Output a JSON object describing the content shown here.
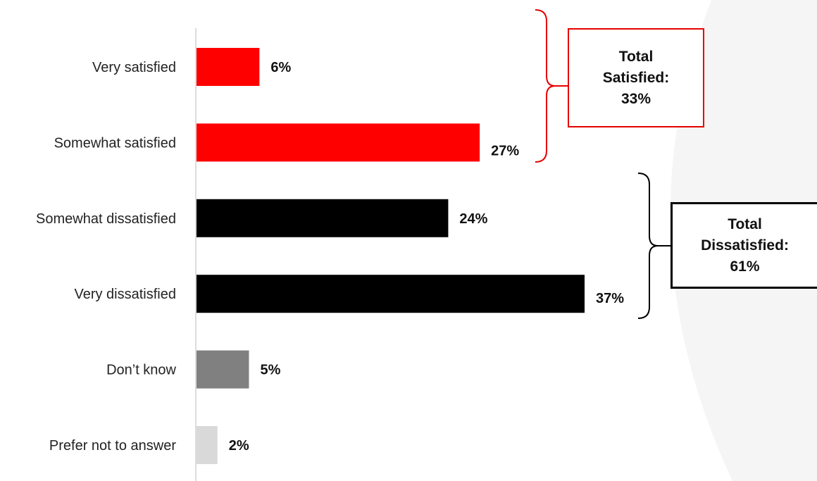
{
  "chart_data": {
    "type": "bar",
    "orientation": "horizontal",
    "categories": [
      "Very satisfied",
      "Somewhat satisfied",
      "Somewhat dissatisfied",
      "Very dissatisfied",
      "Don’t know",
      "Prefer not to answer"
    ],
    "values": [
      6,
      27,
      24,
      37,
      5,
      2
    ],
    "value_labels": [
      "6%",
      "27%",
      "24%",
      "37%",
      "5%",
      "2%"
    ],
    "bar_colors": [
      "#ff0000",
      "#ff0000",
      "#000000",
      "#000000",
      "#808080",
      "#d9d9d9"
    ],
    "xlim": [
      0,
      40
    ],
    "grid": false,
    "title": "",
    "xlabel": "",
    "ylabel": "",
    "annotations": [
      {
        "name": "total-satisfied",
        "lines": [
          "Total",
          "Satisfied:",
          "33%"
        ],
        "spans_categories": [
          "Very satisfied",
          "Somewhat satisfied"
        ],
        "border_color": "#e60000"
      },
      {
        "name": "total-dissatisfied",
        "lines": [
          "Total",
          "Dissatisfied:",
          "61%"
        ],
        "spans_categories": [
          "Somewhat dissatisfied",
          "Very dissatisfied"
        ],
        "border_color": "#000000"
      }
    ]
  }
}
